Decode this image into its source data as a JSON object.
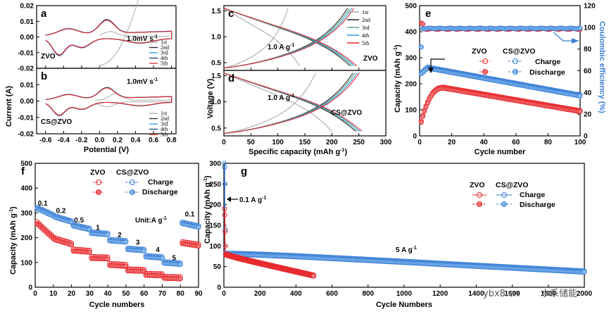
{
  "colors": {
    "red": "#e8292d",
    "blue": "#3a7fd6",
    "gray": "#aaaaaa",
    "black": "#222222",
    "green": "#5aa88c",
    "cyan": "#2a9fd8",
    "navy": "#233a8a",
    "lightred": "#f08080",
    "lightblue": "#8fc0ef"
  },
  "watermark": "ybx8.cn",
  "watermark_cn": "水系储能",
  "chart_data": [
    {
      "id": "a",
      "type": "line",
      "panel_label": "a",
      "title": "",
      "ylabel": "Current (A)",
      "xlabel": "",
      "xlim": [
        -0.7,
        0.85
      ],
      "ylim": [
        -0.02,
        0.02
      ],
      "xticks": [
        -0.6,
        -0.4,
        -0.2,
        0.0,
        0.2,
        0.4,
        0.6,
        0.8
      ],
      "yticks": [
        -0.02,
        -0.01,
        0.0,
        0.01,
        0.02
      ],
      "ytick_labels": [
        "-0.02",
        "-0.01",
        "0.00",
        "0.01",
        "0.02"
      ],
      "annotations": {
        "sample": "ZVO",
        "rate": "1.0mV s",
        "rate_sup": "-1"
      },
      "legend": [
        "1st",
        "2nd",
        "3rd",
        "4th",
        "5th"
      ],
      "series_colors": [
        "#aaaaaa",
        "#222222",
        "#2a9fd8",
        "#233a8a",
        "#e8292d"
      ]
    },
    {
      "id": "b",
      "type": "line",
      "panel_label": "b",
      "ylabel": "",
      "xlabel": "Potential (V)",
      "xlim": [
        -0.7,
        0.85
      ],
      "ylim": [
        -0.02,
        0.02
      ],
      "xticks": [
        -0.6,
        -0.4,
        -0.2,
        0.0,
        0.2,
        0.4,
        0.6,
        0.8
      ],
      "xtick_labels": [
        "-0.6",
        "-0.4",
        "-0.2",
        "0.0",
        "0.2",
        "0.4",
        "0.6",
        "0.8"
      ],
      "yticks": [
        -0.02,
        -0.01,
        0.0,
        0.01
      ],
      "ytick_labels": [
        "-0.02",
        "-0.01",
        "0.00",
        "0.01"
      ],
      "annotations": {
        "sample": "CS@ZVO",
        "rate": "1.0mV s",
        "rate_sup": "-1"
      },
      "legend": [
        "1st",
        "2nd",
        "3rd",
        "4th",
        "5th"
      ]
    },
    {
      "id": "c",
      "type": "line",
      "panel_label": "c",
      "ylabel": "",
      "xlabel": "",
      "xlim": [
        0,
        300
      ],
      "ylim": [
        0.35,
        1.6
      ],
      "yticks": [
        0.5,
        1.0,
        1.5
      ],
      "ytick_labels": [
        "0.5",
        "1.0",
        "1.5"
      ],
      "annotations": {
        "sample": "ZVO",
        "rate": "1.0 A g",
        "rate_sup": "-1"
      },
      "legend": [
        "1st",
        "2nd",
        "3rd",
        "4th",
        "5th"
      ],
      "series_colors": [
        "#aaaaaa",
        "#222222",
        "#5aa88c",
        "#2a9fd8",
        "#e8292d"
      ]
    },
    {
      "id": "d",
      "type": "line",
      "panel_label": "d",
      "ylabel": "Voltage (V)",
      "xlabel": "Specific capacity (mAh g",
      "xlabel_sup": "-1",
      "xlabel_end": ")",
      "xlim": [
        0,
        300
      ],
      "ylim": [
        0.35,
        1.6
      ],
      "xticks": [
        0,
        50,
        100,
        150,
        200,
        250,
        300
      ],
      "xtick_labels": [
        "0",
        "50",
        "100",
        "150",
        "200",
        "250",
        "300"
      ],
      "yticks": [
        0.5,
        1.0,
        1.5
      ],
      "ytick_labels": [
        "0.5",
        "1.0",
        "1.5"
      ],
      "annotations": {
        "sample": "CS@ZVO",
        "rate": "1.0 A g",
        "rate_sup": "-1"
      }
    },
    {
      "id": "e",
      "type": "scatter",
      "panel_label": "e",
      "xlabel": "Cycle number",
      "ylabel": "Capacity (mAh g",
      "ylabel_sup": "-1",
      "ylabel_end": ")",
      "y2label": "Coulombic efficiency (%)",
      "xlim": [
        0,
        100
      ],
      "ylim": [
        0,
        500
      ],
      "y2lim": [
        0,
        120
      ],
      "xticks": [
        0,
        20,
        40,
        60,
        80,
        100
      ],
      "xtick_labels": [
        "0",
        "20",
        "40",
        "60",
        "80",
        "100"
      ],
      "yticks": [
        0,
        100,
        200,
        300,
        400,
        500
      ],
      "ytick_labels": [
        "0",
        "100",
        "200",
        "300",
        "400",
        "500"
      ],
      "y2ticks": [
        0,
        20,
        40,
        60,
        80,
        100,
        120
      ],
      "y2tick_labels": [
        "0",
        "20",
        "40",
        "60",
        "80",
        "100",
        "120"
      ],
      "legend": {
        "zvo": "ZVO",
        "cs": "CS@ZVO",
        "charge": "Charge",
        "discharge": "Discharge"
      },
      "series": [
        {
          "name": "ZVO capacity",
          "start": 30,
          "peak": 185,
          "peak_cycle": 15,
          "end": 95
        },
        {
          "name": "CS@ZVO capacity",
          "start": 235,
          "peak": 262,
          "peak_cycle": 5,
          "end": 155
        },
        {
          "name": "ZVO CE",
          "value": 98.5
        },
        {
          "name": "CS@ZVO CE",
          "value": 98.8
        }
      ]
    },
    {
      "id": "f",
      "type": "scatter",
      "panel_label": "f",
      "xlabel": "Cycle numbers",
      "ylabel": "Capacity (mAh g",
      "ylabel_sup": "-1",
      "ylabel_end": ")",
      "xlim": [
        0,
        90
      ],
      "ylim": [
        0,
        500
      ],
      "xticks": [
        0,
        10,
        20,
        30,
        40,
        50,
        60,
        70,
        80,
        90
      ],
      "xtick_labels": [
        "0",
        "10",
        "20",
        "30",
        "40",
        "50",
        "60",
        "70",
        "80",
        "90"
      ],
      "yticks": [
        0,
        100,
        200,
        300,
        400,
        500
      ],
      "ytick_labels": [
        "0",
        "100",
        "200",
        "300",
        "400",
        "500"
      ],
      "legend": {
        "zvo": "ZVO",
        "cs": "CS@ZVO",
        "charge": "Charge",
        "discharge": "Discharge"
      },
      "unit_label": "Unit:A g",
      "unit_sup": "-1",
      "rate_labels": [
        "0.1",
        "0.2",
        "0.5",
        "1",
        "2",
        "3",
        "4",
        "5",
        "0.1"
      ],
      "steps": [
        {
          "rate": "0.1",
          "cycles": [
            1,
            10
          ],
          "cs": [
            320,
            290
          ],
          "zvo": [
            260,
            200
          ]
        },
        {
          "rate": "0.2",
          "cycles": [
            11,
            20
          ],
          "cs": [
            285,
            265
          ],
          "zvo": [
            195,
            175
          ]
        },
        {
          "rate": "0.5",
          "cycles": [
            21,
            30
          ],
          "cs": [
            250,
            235
          ],
          "zvo": [
            150,
            145
          ]
        },
        {
          "rate": "1",
          "cycles": [
            31,
            40
          ],
          "cs": [
            220,
            215
          ],
          "zvo": [
            120,
            118
          ]
        },
        {
          "rate": "2",
          "cycles": [
            41,
            50
          ],
          "cs": [
            190,
            185
          ],
          "zvo": [
            92,
            88
          ]
        },
        {
          "rate": "3",
          "cycles": [
            51,
            60
          ],
          "cs": [
            155,
            150
          ],
          "zvo": [
            70,
            68
          ]
        },
        {
          "rate": "4",
          "cycles": [
            61,
            70
          ],
          "cs": [
            125,
            120
          ],
          "zvo": [
            52,
            50
          ]
        },
        {
          "rate": "5",
          "cycles": [
            71,
            80
          ],
          "cs": [
            100,
            95
          ],
          "zvo": [
            40,
            38
          ]
        },
        {
          "rate": "0.1",
          "cycles": [
            81,
            90
          ],
          "cs": [
            260,
            245
          ],
          "zvo": [
            180,
            170
          ]
        }
      ]
    },
    {
      "id": "g",
      "type": "scatter",
      "panel_label": "g",
      "xlabel": "Cycle Numbers",
      "ylabel": "Capacity (mAh g",
      "ylabel_sup": "-1",
      "ylabel_end": ")",
      "xlim": [
        0,
        2000
      ],
      "ylim": [
        0,
        300
      ],
      "xticks": [
        0,
        200,
        400,
        600,
        800,
        1000,
        1200,
        1400,
        1600,
        1800,
        2000
      ],
      "xtick_labels": [
        "0",
        "200",
        "400",
        "600",
        "800",
        "1000",
        "1200",
        "1400",
        "1600",
        "1800",
        "2000"
      ],
      "yticks": [
        0,
        50,
        100,
        150,
        200,
        250,
        300
      ],
      "ytick_labels": [
        "0",
        "50",
        "100",
        "150",
        "200",
        "250",
        "300"
      ],
      "legend": {
        "zvo": "ZVO",
        "cs": "CS@ZVO",
        "charge": "Charge",
        "discharge": "Discharge"
      },
      "annotations": {
        "low_rate": "0.1 A g",
        "high_rate": "5 A g",
        "sup": "-1"
      },
      "series": [
        {
          "name": "ZVO",
          "initial_peak": 190,
          "start_cycle": 10,
          "start": 80,
          "end_cycle": 500,
          "end": 28
        },
        {
          "name": "CS@ZVO",
          "initial_peak": 300,
          "start_cycle": 10,
          "start": 85,
          "end_cycle": 2000,
          "end": 38
        }
      ]
    }
  ]
}
